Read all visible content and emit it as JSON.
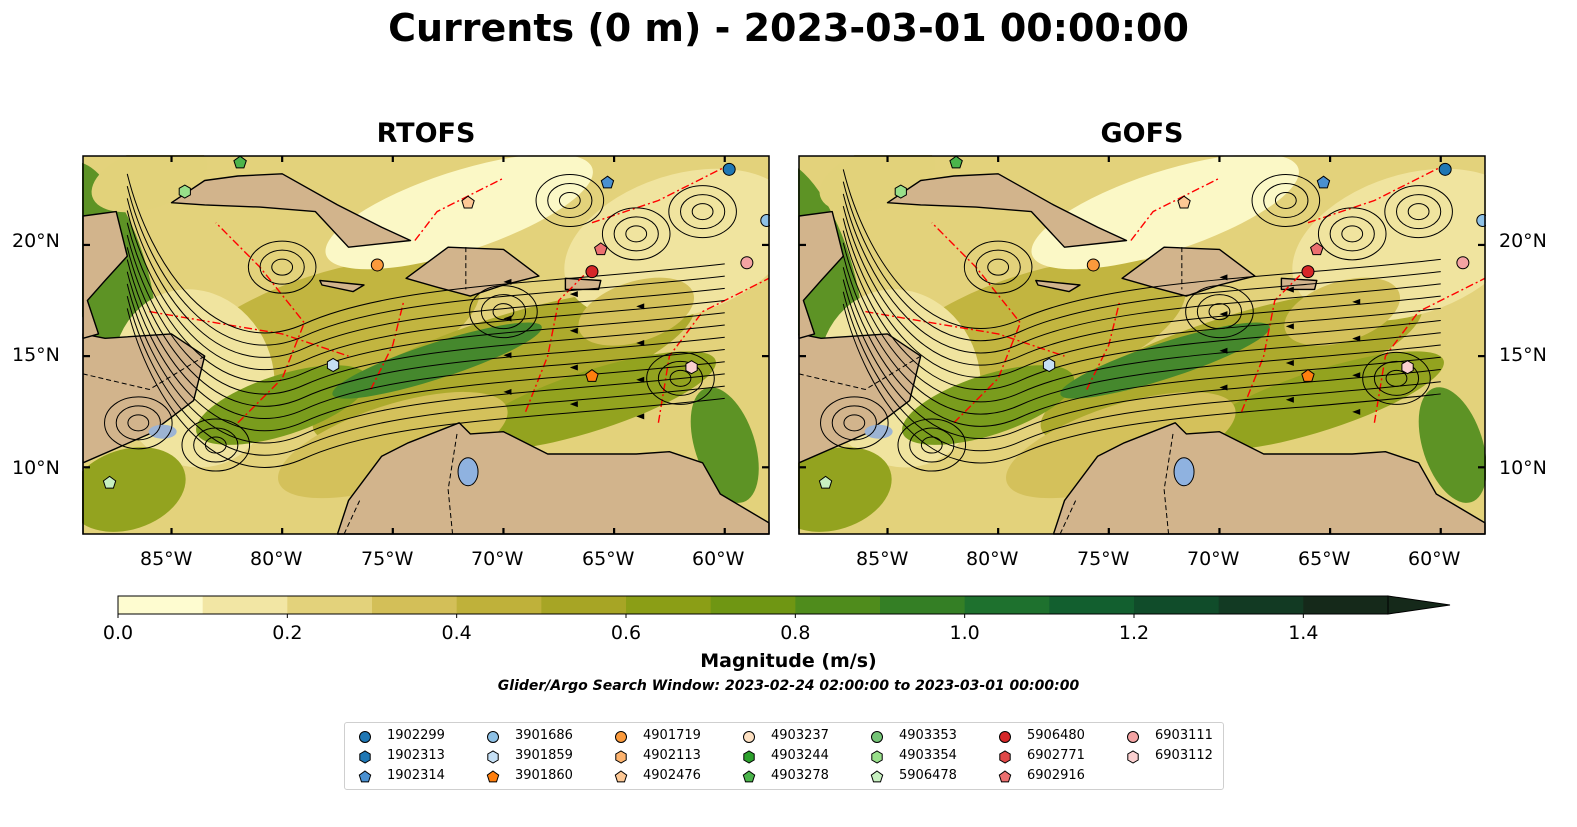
{
  "title": "Currents (0 m) - 2023-03-01 00:00:00",
  "panels": [
    {
      "title": "RTOFS"
    },
    {
      "title": "GOFS"
    }
  ],
  "map": {
    "lon_range": [
      -89,
      -58
    ],
    "lat_range": [
      7,
      24
    ],
    "lon_ticks": [
      "85°W",
      "80°W",
      "75°W",
      "70°W",
      "65°W",
      "60°W"
    ],
    "lat_ticks": [
      "20°N",
      "15°N",
      "10°N"
    ],
    "land_color": "#d2b48c",
    "eez_line_color": "#ff0000",
    "streamline_color": "#000000"
  },
  "colorbar": {
    "label": "Magnitude (m/s)",
    "ticks": [
      "0.0",
      "0.2",
      "0.4",
      "0.6",
      "0.8",
      "1.0",
      "1.2",
      "1.4"
    ],
    "range": [
      0,
      1.5
    ],
    "extend": "max",
    "colors": [
      "#fefcd0",
      "#f2e6a4",
      "#e3d27b",
      "#d3bf58",
      "#bfb13a",
      "#a7a525",
      "#8b9e16",
      "#6f9613",
      "#4f8c1c",
      "#347f25",
      "#1e712e",
      "#125f2f",
      "#104c2a",
      "#123a23",
      "#15291a"
    ]
  },
  "search_window": "Glider/Argo Search Window: 2023-02-24 02:00:00 to 2023-03-01 00:00:00",
  "legend": {
    "columns": [
      [
        {
          "label": "1902299",
          "marker": "circle",
          "color": "#1f77b4"
        },
        {
          "label": "1902313",
          "marker": "hexagon",
          "color": "#1f77b4"
        },
        {
          "label": "1902314",
          "marker": "pentagon",
          "color": "#4a90d0"
        }
      ],
      [
        {
          "label": "3901686",
          "marker": "circle",
          "color": "#8ec1e6"
        },
        {
          "label": "3901859",
          "marker": "hexagon",
          "color": "#c6e0f5"
        },
        {
          "label": "3901860",
          "marker": "pentagon",
          "color": "#ff7f0e"
        }
      ],
      [
        {
          "label": "4901719",
          "marker": "circle",
          "color": "#fb9a3c"
        },
        {
          "label": "4902113",
          "marker": "hexagon",
          "color": "#fdb36e"
        },
        {
          "label": "4902476",
          "marker": "pentagon",
          "color": "#fdc895"
        }
      ],
      [
        {
          "label": "4903237",
          "marker": "circle",
          "color": "#fde0c2"
        },
        {
          "label": "4903244",
          "marker": "hexagon",
          "color": "#2ca02c"
        },
        {
          "label": "4903278",
          "marker": "pentagon",
          "color": "#4bb44b"
        }
      ],
      [
        {
          "label": "4903353",
          "marker": "circle",
          "color": "#74c476"
        },
        {
          "label": "4903354",
          "marker": "hexagon",
          "color": "#98df8a"
        },
        {
          "label": "5906478",
          "marker": "pentagon",
          "color": "#c7f0c0"
        }
      ],
      [
        {
          "label": "5906480",
          "marker": "circle",
          "color": "#d62728"
        },
        {
          "label": "6902771",
          "marker": "hexagon",
          "color": "#e04848"
        },
        {
          "label": "6902916",
          "marker": "pentagon",
          "color": "#ec7070"
        }
      ],
      [
        {
          "label": "6903111",
          "marker": "circle",
          "color": "#f4a3a3"
        },
        {
          "label": "6903112",
          "marker": "hexagon",
          "color": "#fbd0d0"
        }
      ]
    ]
  },
  "floats": [
    {
      "id": "1902299",
      "lon": -59.8,
      "lat": 23.4
    },
    {
      "id": "1902314",
      "lon": -65.3,
      "lat": 22.8
    },
    {
      "id": "3901686",
      "lon": -58.1,
      "lat": 21.1
    },
    {
      "id": "3901859",
      "lon": -77.7,
      "lat": 14.6
    },
    {
      "id": "3901860",
      "lon": -66.0,
      "lat": 14.1
    },
    {
      "id": "4901719",
      "lon": -75.7,
      "lat": 19.1
    },
    {
      "id": "4902476",
      "lon": -71.6,
      "lat": 21.9
    },
    {
      "id": "4903278",
      "lon": -81.9,
      "lat": 23.7
    },
    {
      "id": "4903354",
      "lon": -84.4,
      "lat": 22.4
    },
    {
      "id": "5906478",
      "lon": -87.8,
      "lat": 9.3
    },
    {
      "id": "5906480",
      "lon": -66.0,
      "lat": 18.8
    },
    {
      "id": "6902916",
      "lon": -65.6,
      "lat": 19.8
    },
    {
      "id": "6903111",
      "lon": -59.0,
      "lat": 19.2
    },
    {
      "id": "6903112",
      "lon": -61.5,
      "lat": 14.5
    }
  ]
}
